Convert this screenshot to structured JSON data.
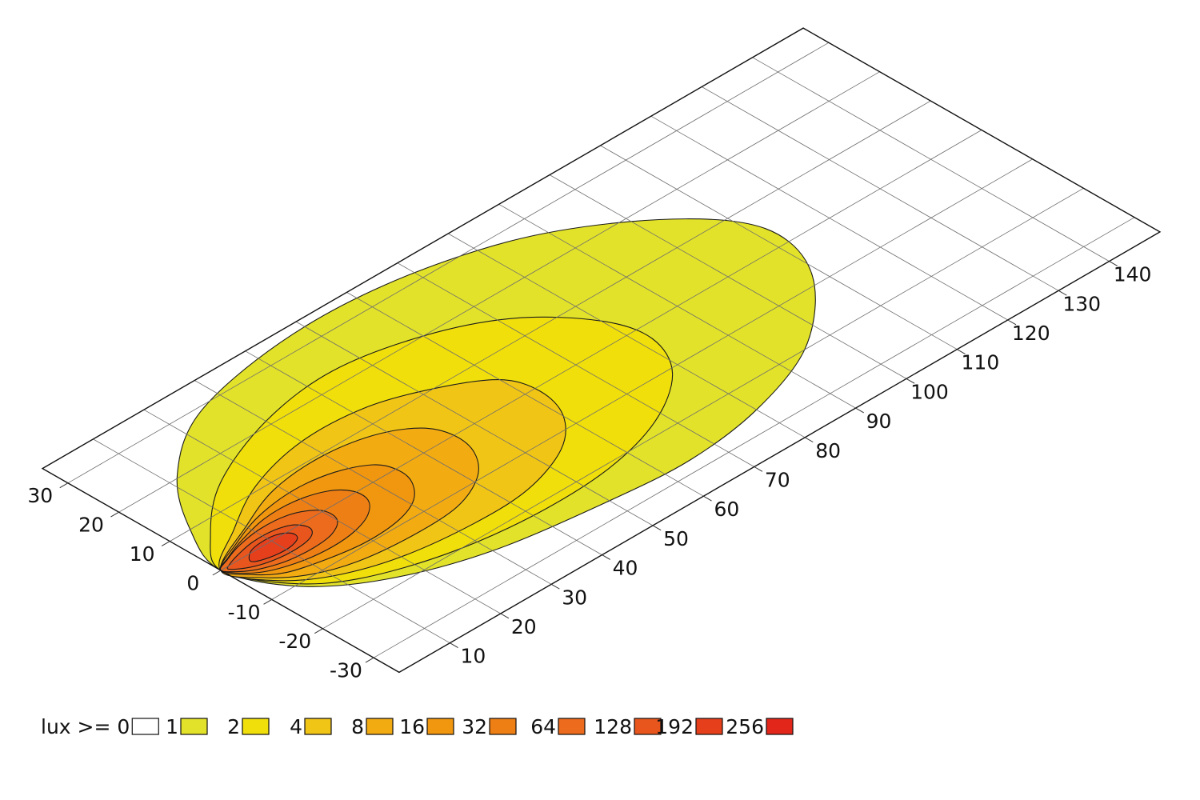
{
  "chart_data": {
    "type": "heatmap",
    "title": "",
    "xlabel": "",
    "ylabel": "",
    "x_axis": {
      "range": [
        0,
        150
      ],
      "tick_step": 10,
      "tick_labels": [
        "10",
        "20",
        "30",
        "40",
        "50",
        "60",
        "70",
        "80",
        "90",
        "100",
        "110",
        "120",
        "130",
        "140"
      ]
    },
    "y_axis": {
      "range": [
        -35,
        35
      ],
      "tick_step": 10,
      "tick_labels": [
        "30",
        "20",
        "10",
        "0",
        "-10",
        "-20",
        "-30"
      ]
    },
    "grid": true,
    "legend": {
      "placement": "bottom-left",
      "prefix": "lux >= ",
      "entries": [
        {
          "label": "0",
          "color": "#ffffff"
        },
        {
          "label": "1",
          "color": "#e2e22a"
        },
        {
          "label": "2",
          "color": "#f0df0a"
        },
        {
          "label": "4",
          "color": "#f1c516"
        },
        {
          "label": "8",
          "color": "#f3ab12"
        },
        {
          "label": "16",
          "color": "#f0960f"
        },
        {
          "label": "32",
          "color": "#ee7f15"
        },
        {
          "label": "64",
          "color": "#ec6b1c"
        },
        {
          "label": "128",
          "color": "#e8561e"
        },
        {
          "label": "192",
          "color": "#e63f1c"
        },
        {
          "label": "256",
          "color": "#e3261a"
        }
      ]
    },
    "contours": [
      {
        "lux": 1,
        "points": [
          [
            0,
            0
          ],
          [
            5,
            -10.5
          ],
          [
            15,
            -18
          ],
          [
            30,
            -23.5
          ],
          [
            50,
            -26.5
          ],
          [
            65,
            -27.5
          ],
          [
            80,
            -25.5
          ],
          [
            95,
            -20
          ],
          [
            107,
            -10
          ],
          [
            112,
            0
          ],
          [
            110,
            9
          ],
          [
            100,
            19
          ],
          [
            85,
            27.5
          ],
          [
            65,
            32.5
          ],
          [
            45,
            33
          ],
          [
            25,
            29
          ],
          [
            12,
            20.5
          ],
          [
            4,
            10
          ],
          [
            0,
            0
          ]
        ]
      },
      {
        "lux": 2,
        "points": [
          [
            0,
            0
          ],
          [
            4.5,
            -9
          ],
          [
            12,
            -15
          ],
          [
            25,
            -19.5
          ],
          [
            40,
            -21.5
          ],
          [
            55,
            -21
          ],
          [
            68,
            -17.5
          ],
          [
            78,
            -11
          ],
          [
            82,
            -3
          ],
          [
            80,
            5
          ],
          [
            72,
            14
          ],
          [
            60,
            20
          ],
          [
            45,
            23
          ],
          [
            30,
            21
          ],
          [
            15,
            15
          ],
          [
            5,
            7
          ],
          [
            0,
            0
          ]
        ]
      },
      {
        "lux": 4,
        "points": [
          [
            0,
            0
          ],
          [
            3.5,
            -7
          ],
          [
            10,
            -12
          ],
          [
            20,
            -15.5
          ],
          [
            33,
            -17
          ],
          [
            44,
            -16.5
          ],
          [
            54,
            -13
          ],
          [
            60,
            -7.5
          ],
          [
            62,
            -1
          ],
          [
            60,
            5
          ],
          [
            52,
            10
          ],
          [
            42,
            13.5
          ],
          [
            30,
            14
          ],
          [
            18,
            11
          ],
          [
            8,
            5.5
          ],
          [
            0,
            0
          ]
        ]
      },
      {
        "lux": 8,
        "points": [
          [
            0,
            0
          ],
          [
            3,
            -5.5
          ],
          [
            8,
            -9.5
          ],
          [
            15,
            -12
          ],
          [
            25,
            -13
          ],
          [
            34,
            -12.5
          ],
          [
            41,
            -9.5
          ],
          [
            45,
            -5
          ],
          [
            46,
            0
          ],
          [
            44,
            4.5
          ],
          [
            38,
            8
          ],
          [
            29,
            9.5
          ],
          [
            19,
            8.5
          ],
          [
            10,
            5
          ],
          [
            0,
            0
          ]
        ]
      },
      {
        "lux": 16,
        "points": [
          [
            0,
            0
          ],
          [
            2.5,
            -4
          ],
          [
            6,
            -6.8
          ],
          [
            12,
            -8.5
          ],
          [
            19,
            -9.5
          ],
          [
            26,
            -9
          ],
          [
            31,
            -7
          ],
          [
            34,
            -3.5
          ],
          [
            34.5,
            0
          ],
          [
            33,
            3
          ],
          [
            28,
            5.5
          ],
          [
            21,
            6.5
          ],
          [
            13,
            5.5
          ],
          [
            6,
            3
          ],
          [
            0,
            0
          ]
        ]
      },
      {
        "lux": 32,
        "points": [
          [
            0,
            0
          ],
          [
            2,
            -3
          ],
          [
            5,
            -5
          ],
          [
            10,
            -6.5
          ],
          [
            15,
            -7
          ],
          [
            20,
            -6.5
          ],
          [
            24,
            -5
          ],
          [
            26.5,
            -2.5
          ],
          [
            26.5,
            0.5
          ],
          [
            24,
            3
          ],
          [
            19,
            4.5
          ],
          [
            13,
            4.5
          ],
          [
            7,
            3
          ],
          [
            3,
            1.5
          ],
          [
            0,
            0
          ]
        ]
      },
      {
        "lux": 64,
        "points": [
          [
            0,
            0
          ],
          [
            1.8,
            -2.2
          ],
          [
            4.5,
            -3.8
          ],
          [
            8.5,
            -5
          ],
          [
            13,
            -5.3
          ],
          [
            17,
            -4.8
          ],
          [
            19.8,
            -3.2
          ],
          [
            20.5,
            -1
          ],
          [
            19.5,
            1
          ],
          [
            16,
            2.8
          ],
          [
            11,
            3.2
          ],
          [
            6,
            2.4
          ],
          [
            2.5,
            1.2
          ],
          [
            0,
            0
          ]
        ]
      },
      {
        "lux": 128,
        "points": [
          [
            1,
            -0.6
          ],
          [
            3.5,
            -2.4
          ],
          [
            7,
            -3.5
          ],
          [
            11,
            -3.8
          ],
          [
            14.5,
            -3.2
          ],
          [
            16,
            -1.6
          ],
          [
            15,
            0.5
          ],
          [
            12,
            1.6
          ],
          [
            8,
            1.7
          ],
          [
            4.5,
            1
          ],
          [
            2,
            0.2
          ],
          [
            1,
            -0.6
          ]
        ]
      },
      {
        "lux": 192,
        "points": [
          [
            4.5,
            -1.5
          ],
          [
            7,
            -2.6
          ],
          [
            10.5,
            -2.9
          ],
          [
            13,
            -2.1
          ],
          [
            13.3,
            -0.6
          ],
          [
            11.5,
            0.6
          ],
          [
            8.5,
            0.8
          ],
          [
            6,
            0.2
          ],
          [
            4.5,
            -1.5
          ]
        ]
      }
    ]
  }
}
